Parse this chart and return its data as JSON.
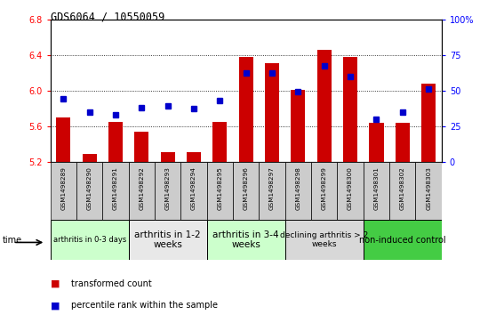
{
  "title": "GDS6064 / 10550059",
  "samples": [
    "GSM1498289",
    "GSM1498290",
    "GSM1498291",
    "GSM1498292",
    "GSM1498293",
    "GSM1498294",
    "GSM1498295",
    "GSM1498296",
    "GSM1498297",
    "GSM1498298",
    "GSM1498299",
    "GSM1498300",
    "GSM1498301",
    "GSM1498302",
    "GSM1498303"
  ],
  "transformed_count": [
    5.7,
    5.29,
    5.65,
    5.54,
    5.31,
    5.31,
    5.65,
    6.38,
    6.31,
    6.01,
    6.46,
    6.38,
    5.64,
    5.64,
    6.08
  ],
  "percentile_rank": [
    44,
    35,
    33,
    38,
    39,
    37,
    43,
    62,
    62,
    49,
    67,
    60,
    30,
    35,
    51
  ],
  "ylim_left": [
    5.2,
    6.8
  ],
  "ylim_right": [
    0,
    100
  ],
  "yticks_left": [
    5.2,
    5.6,
    6.0,
    6.4,
    6.8
  ],
  "yticks_right": [
    0,
    25,
    50,
    75,
    100
  ],
  "bar_color": "#cc0000",
  "dot_color": "#0000cc",
  "bar_bottom": 5.2,
  "group_boundaries": [
    {
      "start": 0,
      "end": 2,
      "label": "arthritis in 0-3 days",
      "color": "#ccffcc",
      "fontsize": 6.0
    },
    {
      "start": 3,
      "end": 5,
      "label": "arthritis in 1-2\nweeks",
      "color": "#e8e8e8",
      "fontsize": 7.5
    },
    {
      "start": 6,
      "end": 8,
      "label": "arthritis in 3-4\nweeks",
      "color": "#ccffcc",
      "fontsize": 7.5
    },
    {
      "start": 9,
      "end": 11,
      "label": "declining arthritis > 2\nweeks",
      "color": "#d8d8d8",
      "fontsize": 6.5
    },
    {
      "start": 12,
      "end": 14,
      "label": "non-induced control",
      "color": "#44cc44",
      "fontsize": 7.0
    }
  ],
  "sample_box_color": "#cccccc",
  "fig_bg": "#ffffff"
}
